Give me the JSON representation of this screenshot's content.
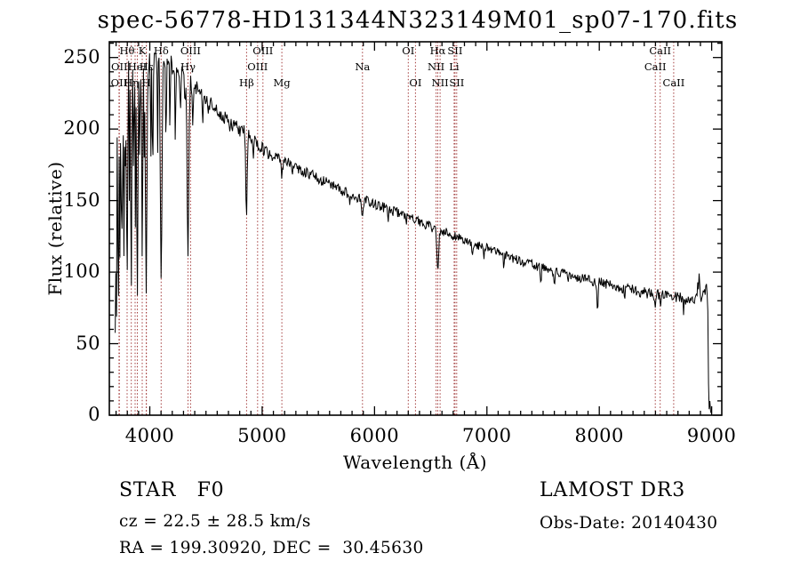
{
  "title": "spec-56778-HD131344N323149M01_sp07-170.fits",
  "annotations": {
    "class": "STAR   F0",
    "survey": "LAMOST DR3",
    "cz": "cz = 22.5 ± 28.5 km/s",
    "obs_date": "Obs-Date: 20140430",
    "radec": "RA = 199.30920, DEC =  30.45630"
  },
  "chart_data": {
    "type": "line",
    "title": "spec-56778-HD131344N323149M01_sp07-170.fits",
    "xlabel": "Wavelength (Å)",
    "ylabel": "Flux (relative)",
    "xlim": [
      3640,
      9090
    ],
    "ylim": [
      0,
      261
    ],
    "xticks": [
      4000,
      5000,
      6000,
      7000,
      8000,
      9000
    ],
    "yticks": [
      0,
      50,
      100,
      150,
      200,
      250
    ],
    "x_minor_step": 100,
    "y_minor_step": 10,
    "grid": false,
    "legend": "none",
    "series_color": "#000000",
    "marker_line_color": "#a33c3c",
    "x_range": [
      3692,
      8998
    ],
    "sample_step": 6,
    "noise_seed": 20140430,
    "spectral_lines": [
      {
        "wavelength": 3726,
        "label": "OII",
        "row": 3
      },
      {
        "wavelength": 3729,
        "label": "OII",
        "row": 2
      },
      {
        "wavelength": 3798,
        "label": "Hθ",
        "row": 1
      },
      {
        "wavelength": 3835,
        "label": "Hη",
        "row": 3
      },
      {
        "wavelength": 3869,
        "label": "",
        "row": 0
      },
      {
        "wavelength": 3889,
        "label": "HeI",
        "row": 2
      },
      {
        "wavelength": 3933,
        "label": "K",
        "row": 1
      },
      {
        "wavelength": 3968,
        "label": "H",
        "row": 3
      },
      {
        "wavelength": 3970,
        "label": "Hε",
        "row": 2
      },
      {
        "wavelength": 4101,
        "label": "Hδ",
        "row": 1
      },
      {
        "wavelength": 4340,
        "label": "Hγ",
        "row": 2
      },
      {
        "wavelength": 4363,
        "label": "OIII",
        "row": 1
      },
      {
        "wavelength": 4861,
        "label": "Hβ",
        "row": 3
      },
      {
        "wavelength": 4959,
        "label": "OIII",
        "row": 2
      },
      {
        "wavelength": 5007,
        "label": "OIII",
        "row": 1
      },
      {
        "wavelength": 5175,
        "label": "Mg",
        "row": 3
      },
      {
        "wavelength": 5893,
        "label": "Na",
        "row": 2
      },
      {
        "wavelength": 6300,
        "label": "OI",
        "row": 1
      },
      {
        "wavelength": 6364,
        "label": "OI",
        "row": 3
      },
      {
        "wavelength": 6548,
        "label": "NII",
        "row": 2
      },
      {
        "wavelength": 6563,
        "label": "Hα",
        "row": 1
      },
      {
        "wavelength": 6583,
        "label": "NII",
        "row": 3
      },
      {
        "wavelength": 6708,
        "label": "Li",
        "row": 2
      },
      {
        "wavelength": 6716,
        "label": "SII",
        "row": 1
      },
      {
        "wavelength": 6731,
        "label": "SII",
        "row": 3
      },
      {
        "wavelength": 8498,
        "label": "CaII",
        "row": 2
      },
      {
        "wavelength": 8542,
        "label": "CaII",
        "row": 1
      },
      {
        "wavelength": 8662,
        "label": "CaII",
        "row": 3
      }
    ],
    "continuum": [
      [
        3688,
        2
      ],
      [
        3694,
        50
      ],
      [
        3700,
        150
      ],
      [
        3708,
        215
      ],
      [
        3718,
        232
      ],
      [
        3735,
        238
      ],
      [
        3755,
        241
      ],
      [
        3775,
        243
      ],
      [
        3800,
        245
      ],
      [
        3850,
        247
      ],
      [
        3900,
        247
      ],
      [
        3950,
        249
      ],
      [
        4000,
        250
      ],
      [
        4040,
        251
      ],
      [
        4090,
        249
      ],
      [
        4140,
        247
      ],
      [
        4190,
        245
      ],
      [
        4240,
        242
      ],
      [
        4290,
        238
      ],
      [
        4340,
        234
      ],
      [
        4390,
        230
      ],
      [
        4440,
        226
      ],
      [
        4490,
        222
      ],
      [
        4540,
        218
      ],
      [
        4590,
        214
      ],
      [
        4640,
        210
      ],
      [
        4690,
        206
      ],
      [
        4740,
        203
      ],
      [
        4790,
        200
      ],
      [
        4840,
        198
      ],
      [
        4890,
        195
      ],
      [
        4940,
        191
      ],
      [
        4990,
        187
      ],
      [
        5040,
        184
      ],
      [
        5090,
        182
      ],
      [
        5140,
        180
      ],
      [
        5190,
        178
      ],
      [
        5290,
        174
      ],
      [
        5390,
        170
      ],
      [
        5490,
        166
      ],
      [
        5590,
        162
      ],
      [
        5690,
        158
      ],
      [
        5790,
        154
      ],
      [
        5890,
        151
      ],
      [
        5990,
        148
      ],
      [
        6090,
        145
      ],
      [
        6190,
        142
      ],
      [
        6290,
        139
      ],
      [
        6390,
        135
      ],
      [
        6490,
        132
      ],
      [
        6590,
        129
      ],
      [
        6690,
        126
      ],
      [
        6790,
        123
      ],
      [
        6890,
        120
      ],
      [
        6990,
        117
      ],
      [
        7090,
        114
      ],
      [
        7190,
        111
      ],
      [
        7290,
        108
      ],
      [
        7390,
        106
      ],
      [
        7490,
        103
      ],
      [
        7590,
        101
      ],
      [
        7690,
        99
      ],
      [
        7790,
        97
      ],
      [
        7890,
        95
      ],
      [
        7990,
        93
      ],
      [
        8090,
        91
      ],
      [
        8190,
        89
      ],
      [
        8290,
        88
      ],
      [
        8390,
        86
      ],
      [
        8490,
        85
      ],
      [
        8590,
        84
      ],
      [
        8690,
        83
      ],
      [
        8750,
        81
      ],
      [
        8800,
        80
      ],
      [
        8840,
        78
      ],
      [
        8868,
        86
      ],
      [
        8888,
        95
      ],
      [
        8903,
        76
      ],
      [
        8918,
        82
      ],
      [
        8938,
        88
      ],
      [
        8958,
        87
      ],
      [
        8966,
        70
      ],
      [
        8972,
        25
      ],
      [
        8978,
        4
      ],
      [
        8985,
        11
      ],
      [
        8990,
        3
      ],
      [
        8998,
        1
      ]
    ],
    "absorption_features": [
      [
        3705,
        80,
        3
      ],
      [
        3715,
        120,
        3
      ],
      [
        3721,
        100,
        4
      ],
      [
        3734,
        120,
        4
      ],
      [
        3750,
        100,
        4
      ],
      [
        3760,
        130,
        3
      ],
      [
        3771,
        112,
        4
      ],
      [
        3784,
        150,
        3
      ],
      [
        3798,
        92,
        5
      ],
      [
        3819,
        155,
        3
      ],
      [
        3835,
        85,
        5
      ],
      [
        3856,
        150,
        3
      ],
      [
        3871,
        135,
        3
      ],
      [
        3889,
        90,
        6
      ],
      [
        3910,
        160,
        3
      ],
      [
        3933,
        115,
        5
      ],
      [
        3952,
        170,
        3
      ],
      [
        3968,
        88,
        7
      ],
      [
        4009,
        185,
        3
      ],
      [
        4026,
        168,
        4
      ],
      [
        4069,
        182,
        3
      ],
      [
        4101,
        98,
        7
      ],
      [
        4144,
        192,
        4
      ],
      [
        4179,
        200,
        3
      ],
      [
        4227,
        192,
        4
      ],
      [
        4271,
        203,
        3
      ],
      [
        4313,
        215,
        3
      ],
      [
        4340,
        110,
        7
      ],
      [
        4383,
        198,
        4
      ],
      [
        4471,
        205,
        3
      ],
      [
        4520,
        210,
        3
      ],
      [
        4713,
        195,
        2.5
      ],
      [
        4861,
        136,
        6
      ],
      [
        4922,
        183,
        3
      ],
      [
        5015,
        178,
        3
      ],
      [
        5175,
        168,
        7
      ],
      [
        5270,
        170,
        4
      ],
      [
        5530,
        158,
        3
      ],
      [
        5782,
        148,
        3
      ],
      [
        5893,
        140,
        6
      ],
      [
        6122,
        136,
        3
      ],
      [
        6280,
        132,
        3
      ],
      [
        6563,
        100,
        7
      ],
      [
        6870,
        109,
        5
      ],
      [
        6975,
        110,
        3
      ],
      [
        7150,
        104,
        4
      ],
      [
        7480,
        92,
        4
      ],
      [
        7600,
        94,
        6
      ],
      [
        7720,
        92,
        3
      ],
      [
        7985,
        72,
        5
      ],
      [
        8226,
        82,
        4
      ],
      [
        8498,
        79,
        5
      ],
      [
        8542,
        76,
        5
      ],
      [
        8662,
        77,
        5
      ],
      [
        8750,
        74,
        3
      ]
    ],
    "noise_profile": [
      [
        3690,
        40
      ],
      [
        3705,
        30
      ],
      [
        3725,
        22
      ],
      [
        3760,
        16
      ],
      [
        3800,
        13
      ],
      [
        3860,
        11
      ],
      [
        3950,
        9
      ],
      [
        4100,
        7.5
      ],
      [
        4300,
        6
      ],
      [
        4600,
        5
      ],
      [
        5000,
        4.5
      ],
      [
        5400,
        4
      ],
      [
        6000,
        3.6
      ],
      [
        6500,
        3.4
      ],
      [
        7000,
        3.2
      ],
      [
        7600,
        3.4
      ],
      [
        8000,
        3.6
      ],
      [
        8400,
        4
      ],
      [
        8700,
        4.5
      ],
      [
        8900,
        5
      ],
      [
        9000,
        5
      ]
    ]
  }
}
